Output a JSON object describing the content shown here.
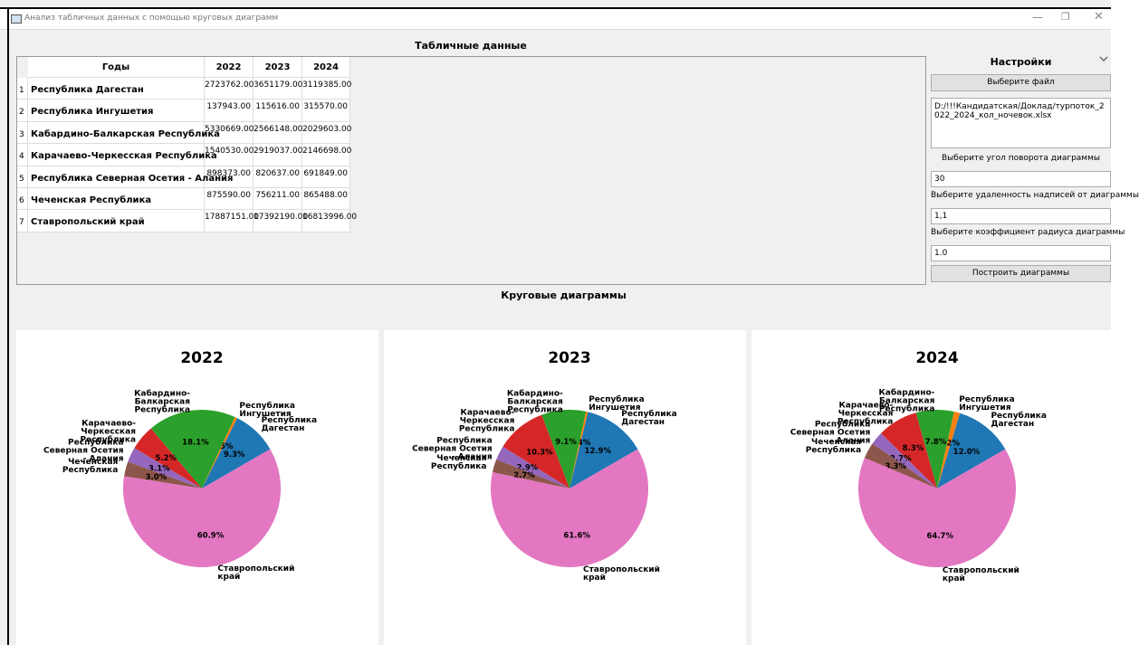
{
  "window": {
    "title": "Анализ табличных данных с помощью круговых диаграмм"
  },
  "table": {
    "heading": "Табличные данные",
    "columns": [
      "Годы",
      "2022",
      "2023",
      "2024"
    ],
    "row_numbers": [
      "1",
      "2",
      "3",
      "4",
      "5",
      "6",
      "7"
    ],
    "rows": [
      [
        "Республика Дагестан",
        "2723762.00",
        "3651179.00",
        "3119385.00"
      ],
      [
        "Республика Ингушетия",
        "137943.00",
        "115616.00",
        "315570.00"
      ],
      [
        "Кабардино-Балкарская Республика",
        "5330669.00",
        "2566148.00",
        "2029603.00"
      ],
      [
        "Карачаево-Черкесская Республика",
        "1540530.00",
        "2919037.00",
        "2146698.00"
      ],
      [
        "Республика Северная Осетия - Алания",
        "898373.00",
        "820637.00",
        "691849.00"
      ],
      [
        "Чеченская Республика",
        "875590.00",
        "756211.00",
        "865488.00"
      ],
      [
        "Ставропольский край",
        "17887151.00",
        "17392190.00",
        "16813996.00"
      ]
    ]
  },
  "settings": {
    "heading": "Настройки",
    "file_button": "Выберите файл",
    "file_path": "D:/!!!Кандидатская/Доклад/турпоток_2022_2024_кол_ночевок.xlsx",
    "angle_label": "Выберите угол поворота диаграммы",
    "angle": "30",
    "distance_label": "Выберите удаленность надписей от диаграммы",
    "distance": "1,1",
    "radius_label": "Выберите коэффициент радиуса диаграммы",
    "radius": "1.0",
    "build_button": "Построить диаграммы"
  },
  "charts_heading": "Круговые диаграммы",
  "chart_data": [
    {
      "type": "pie",
      "title": "2022",
      "categories": [
        "Республика Дагестан",
        "Республика Ингушетия",
        "Кабардино-Балкарская Республика",
        "Карачаево-Черкесская Республика",
        "Республика Северная Осетия - Алания",
        "Чеченская Республика",
        "Ставропольский край"
      ],
      "values": [
        9.3,
        0.5,
        18.1,
        5.2,
        3.1,
        3.0,
        60.9
      ],
      "value_labels": [
        "9.3%",
        "0.5%",
        "18.1%",
        "5.2%",
        "3.1%",
        "3.0%",
        "60.9%"
      ],
      "colors": [
        "#1f77b4",
        "#ff7f0e",
        "#2ca02c",
        "#d62728",
        "#9467bd",
        "#8c564b",
        "#e377c2"
      ]
    },
    {
      "type": "pie",
      "title": "2023",
      "categories": [
        "Республика Дагестан",
        "Республика Ингушетия",
        "Кабардино-Балкарская Республика",
        "Карачаево-Черкесская Республика",
        "Республика Северная Осетия - Алания",
        "Чеченская Республика",
        "Ставропольский край"
      ],
      "values": [
        12.9,
        0.4,
        9.1,
        10.3,
        2.9,
        2.7,
        61.6
      ],
      "value_labels": [
        "12.9%",
        "0.4%",
        "9.1%",
        "10.3%",
        "2.9%",
        "2.7%",
        "61.6%"
      ],
      "colors": [
        "#1f77b4",
        "#ff7f0e",
        "#2ca02c",
        "#d62728",
        "#9467bd",
        "#8c564b",
        "#e377c2"
      ]
    },
    {
      "type": "pie",
      "title": "2024",
      "categories": [
        "Республика Дагестан",
        "Республика Ингушетия",
        "Кабардино-Балкарская Республика",
        "Карачаево-Черкесская Республика",
        "Республика Северная Осетия - Алания",
        "Чеченская Республика",
        "Ставропольский край"
      ],
      "values": [
        12.0,
        1.2,
        7.8,
        8.3,
        2.7,
        3.3,
        64.7
      ],
      "value_labels": [
        "12.0%",
        "1.2%",
        "7.8%",
        "8.3%",
        "2.7%",
        "3.3%",
        "64.7%"
      ],
      "colors": [
        "#1f77b4",
        "#ff7f0e",
        "#2ca02c",
        "#d62728",
        "#9467bd",
        "#8c564b",
        "#e377c2"
      ]
    }
  ]
}
